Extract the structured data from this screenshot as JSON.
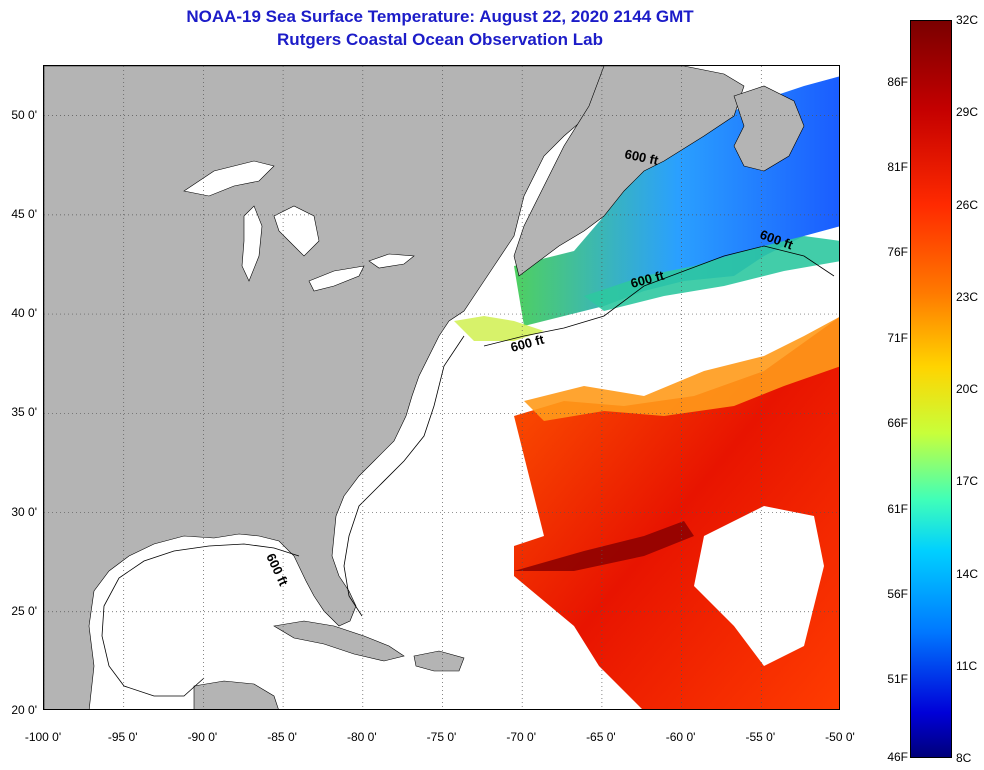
{
  "title": {
    "line1": "NOAA-19 Sea Surface Temperature:  August 22, 2020 2144 GMT",
    "line2": "Rutgers Coastal Ocean Observation Lab"
  },
  "map": {
    "lon_range": [
      -100,
      -50
    ],
    "lat_range": [
      20,
      52.5
    ],
    "lon_ticks": [
      {
        "value": -100,
        "label": "-100 0'"
      },
      {
        "value": -95,
        "label": "-95 0'"
      },
      {
        "value": -90,
        "label": "-90 0'"
      },
      {
        "value": -85,
        "label": "-85 0'"
      },
      {
        "value": -80,
        "label": "-80 0'"
      },
      {
        "value": -75,
        "label": "-75 0'"
      },
      {
        "value": -70,
        "label": "-70 0'"
      },
      {
        "value": -65,
        "label": "-65 0'"
      },
      {
        "value": -60,
        "label": "-60 0'"
      },
      {
        "value": -55,
        "label": "-55 0'"
      },
      {
        "value": -50,
        "label": "-50 0'"
      }
    ],
    "lat_ticks": [
      {
        "value": 50,
        "label": "50 0'"
      },
      {
        "value": 45,
        "label": "45 0'"
      },
      {
        "value": 40,
        "label": "40 0'"
      },
      {
        "value": 35,
        "label": "35 0'"
      },
      {
        "value": 30,
        "label": "30 0'"
      },
      {
        "value": 25,
        "label": "25 0'"
      },
      {
        "value": 20,
        "label": "20 0'"
      }
    ],
    "isobath_labels": [
      "600 ft",
      "600 ft",
      "600 ft",
      "600 ft",
      "600 ft"
    ],
    "colors": {
      "land": "#b4b4b4",
      "no_data": "#ffffff",
      "grid": "#555555"
    }
  },
  "colorbar": {
    "celsius": [
      "32C",
      "29C",
      "26C",
      "23C",
      "20C",
      "17C",
      "14C",
      "11C",
      "8C"
    ],
    "fahrenheit": [
      "86F",
      "81F",
      "76F",
      "71F",
      "66F",
      "61F",
      "56F",
      "51F",
      "46F"
    ]
  }
}
